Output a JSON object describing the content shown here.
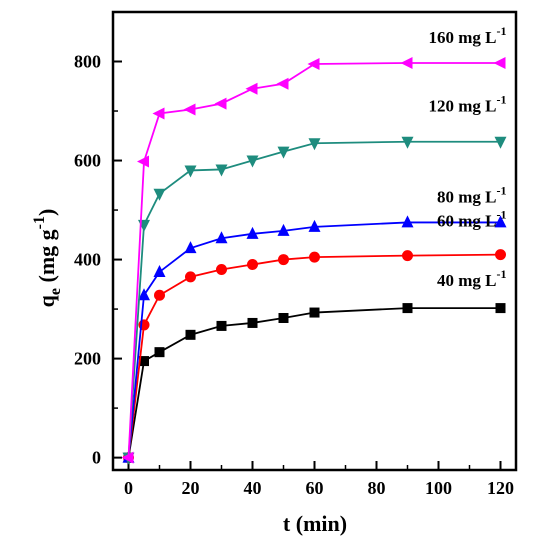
{
  "chart_data": {
    "type": "line",
    "xlabel": "t (min)",
    "ylabel": {
      "main": "q",
      "sub": "e",
      "rest": " (mg g",
      "sup": "-1",
      "close": ")"
    },
    "xlim": [
      -5,
      125
    ],
    "ylim": [
      -25,
      900
    ],
    "xticks": [
      0,
      20,
      40,
      60,
      80,
      100,
      120
    ],
    "yticks": [
      0,
      200,
      400,
      600,
      800
    ],
    "grid": false,
    "legend": "none",
    "series": [
      {
        "name": "40 mg L-1",
        "label_text": "40 mg L",
        "label_sup": "-1",
        "color": "#000000",
        "marker": "square",
        "x": [
          0,
          5,
          10,
          20,
          30,
          40,
          50,
          60,
          90,
          120
        ],
        "y": [
          0,
          195,
          213,
          248,
          266,
          272,
          282,
          293,
          302,
          302
        ]
      },
      {
        "name": "60 mg L-1",
        "label_text": "60 mg L",
        "label_sup": "-1",
        "color": "#ff0000",
        "marker": "circle",
        "x": [
          0,
          5,
          10,
          20,
          30,
          40,
          50,
          60,
          90,
          120
        ],
        "y": [
          0,
          268,
          328,
          365,
          380,
          390,
          400,
          405,
          408,
          410
        ]
      },
      {
        "name": "80 mg L-1",
        "label_text": "80 mg L",
        "label_sup": "-1",
        "color": "#0000ff",
        "marker": "triangle-up",
        "x": [
          0,
          5,
          10,
          20,
          30,
          40,
          50,
          60,
          90,
          120
        ],
        "y": [
          0,
          328,
          375,
          423,
          443,
          452,
          458,
          466,
          475,
          475
        ]
      },
      {
        "name": "120 mg L-1",
        "label_text": "120 mg L",
        "label_sup": "-1",
        "color": "#1e8c7e",
        "marker": "triangle-down",
        "x": [
          0,
          5,
          10,
          20,
          30,
          40,
          50,
          60,
          90,
          120
        ],
        "y": [
          0,
          470,
          533,
          580,
          582,
          600,
          618,
          635,
          638,
          638
        ]
      },
      {
        "name": "160 mg L-1",
        "label_text": "160 mg L",
        "label_sup": "-1",
        "color": "#ff00ff",
        "marker": "triangle-left",
        "x": [
          0,
          5,
          10,
          20,
          30,
          40,
          50,
          60,
          90,
          120
        ],
        "y": [
          0,
          598,
          695,
          703,
          715,
          745,
          755,
          795,
          797,
          797
        ]
      }
    ]
  }
}
